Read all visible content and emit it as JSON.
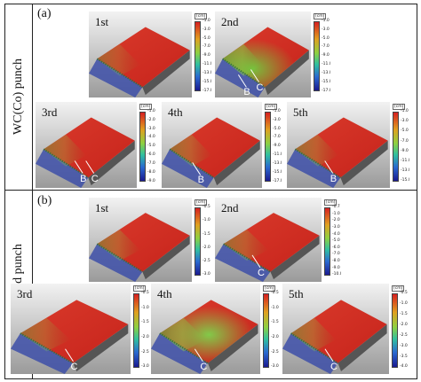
{
  "rows": [
    {
      "tag": "(a)",
      "row_label": "WC(Co) punch",
      "panels": [
        {
          "label": "1st",
          "unit": "[cm]",
          "ticks": [
            "-1.0",
            "-3.0",
            "-5.0",
            "-7.0",
            "-9.0",
            "-11.0",
            "-13.0",
            "-15.0",
            "-17.0"
          ],
          "marks": []
        },
        {
          "label": "2nd",
          "unit": "[cm]",
          "ticks": [
            "-1.0",
            "-3.0",
            "-5.0",
            "-7.0",
            "-9.0",
            "-11.0",
            "-13.0",
            "-15.0",
            "-17.0"
          ],
          "marks": [
            "B",
            "C"
          ]
        },
        {
          "label": "3rd",
          "unit": "[cm]",
          "ticks": [
            "-1.0",
            "-2.0",
            "-3.0",
            "-4.0",
            "-5.0",
            "-6.0",
            "-7.0",
            "-8.0",
            "-9.0"
          ],
          "marks": [
            "B",
            "C"
          ]
        },
        {
          "label": "4th",
          "unit": "[cm]",
          "ticks": [
            "-1.0",
            "-3.0",
            "-5.0",
            "-7.0",
            "-9.0",
            "-11.0",
            "-13.0",
            "-15.0",
            "-17.0"
          ],
          "marks": [
            "B"
          ]
        },
        {
          "label": "5th",
          "unit": "[cm]",
          "ticks": [
            "-1.0",
            "-3.0",
            "-5.0",
            "-7.0",
            "-9.0",
            "-11.0",
            "-13.0",
            "-15.0"
          ],
          "marks": [
            "B"
          ]
        }
      ]
    },
    {
      "tag": "(b)",
      "row_label": "Diamond punch",
      "panels": [
        {
          "label": "1st",
          "unit": "[cm]",
          "ticks": [
            "-0.5",
            "-1.0",
            "-1.5",
            "-2.0",
            "-2.5",
            "-3.0"
          ],
          "marks": []
        },
        {
          "label": "2nd",
          "unit": "[cm]",
          "ticks": [
            "-0.7",
            "-1.0",
            "-2.0",
            "-3.0",
            "-4.0",
            "-5.0",
            "-6.0",
            "-7.0",
            "-8.0",
            "-9.0",
            "-10.0"
          ],
          "marks": [
            "C"
          ]
        },
        {
          "label": "3rd",
          "unit": "[cm]",
          "ticks": [
            "-0.5",
            "-1.0",
            "-1.5",
            "-2.0",
            "-2.5",
            "-3.0"
          ],
          "marks": [
            "C"
          ]
        },
        {
          "label": "4th",
          "unit": "[cm]",
          "ticks": [
            "-0.5",
            "-1.0",
            "-1.5",
            "-2.0",
            "-2.5",
            "-3.0"
          ],
          "marks": [
            "C"
          ]
        },
        {
          "label": "5th",
          "unit": "[cm]",
          "ticks": [
            "-0.5",
            "-1.0",
            "-1.5",
            "-2.0",
            "-2.5",
            "-3.0",
            "-3.5",
            "-4.0"
          ],
          "marks": [
            "C"
          ]
        }
      ]
    }
  ]
}
